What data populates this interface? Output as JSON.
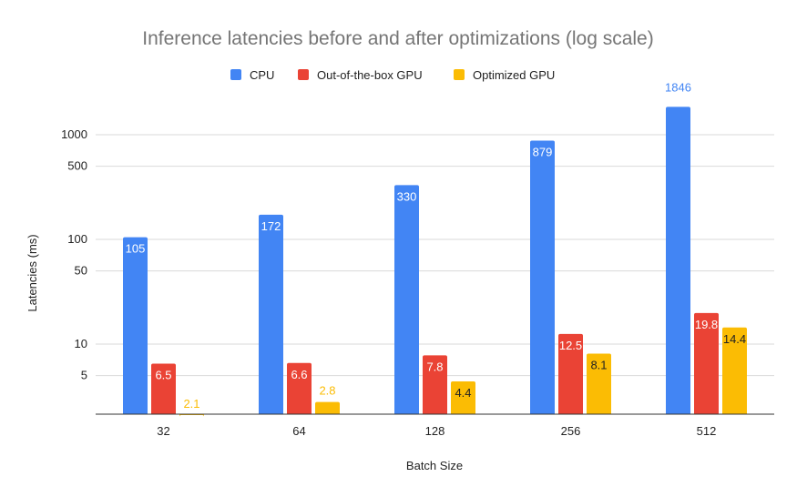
{
  "chart_data": {
    "type": "bar",
    "title": "Inference latencies before and after optimizations (log scale)",
    "xlabel": "Batch Size",
    "ylabel": "Latencies (ms)",
    "categories": [
      "32",
      "64",
      "128",
      "256",
      "512"
    ],
    "series": [
      {
        "name": "CPU",
        "color": "#4285f4",
        "values": [
          105,
          172,
          330,
          879,
          1846
        ],
        "labels": [
          "105",
          "172",
          "330",
          "879",
          "1846"
        ]
      },
      {
        "name": "Out-of-the-box GPU",
        "color": "#ea4335",
        "values": [
          6.5,
          6.6,
          7.8,
          12.5,
          19.8
        ],
        "labels": [
          "6.5",
          "6.6",
          "7.8",
          "12.5",
          "19.8"
        ]
      },
      {
        "name": "Optimized GPU",
        "color": "#fbbc04",
        "values": [
          2.1,
          2.8,
          4.4,
          8.1,
          14.4
        ],
        "labels": [
          "2.1",
          "2.8",
          "4.4",
          "8.1",
          "14.4"
        ]
      }
    ],
    "yscale": "log",
    "ylim": [
      2,
      2000
    ],
    "yticks": [
      5,
      10,
      50,
      100,
      500,
      1000
    ],
    "ytick_labels": [
      "5",
      "10",
      "50",
      "100",
      "500",
      "1000"
    ],
    "grid": true,
    "legend": "top"
  }
}
